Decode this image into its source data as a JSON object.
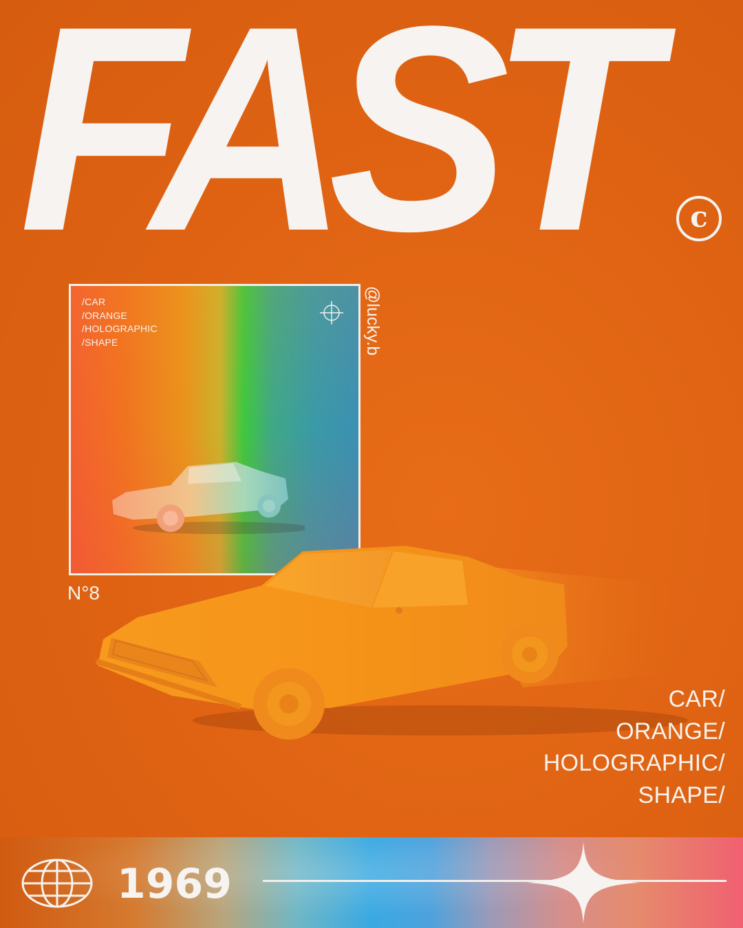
{
  "headline": "FAST",
  "copyright_symbol": "c",
  "thumbnail": {
    "tags": [
      "/CAR",
      "/ORANGE",
      "/HOLOGRAPHIC",
      "/SHAPE"
    ],
    "crosshair_icon": "crosshair-icon"
  },
  "handle": "@lucky.b",
  "issue": "N°8",
  "tags": [
    "CAR/",
    "ORANGE/",
    "HOLOGRAPHIC/",
    "SHAPE/"
  ],
  "footer": {
    "globe_icon": "globe-icon",
    "year": "1969",
    "sparkle_icon": "sparkle-icon"
  },
  "colors": {
    "background": "#df6414",
    "text": "#f6f3f0",
    "car": "#f6901a"
  }
}
